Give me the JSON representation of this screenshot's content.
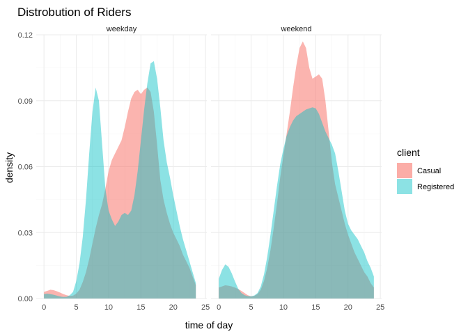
{
  "chart_data": {
    "type": "area",
    "title": "Distrobution of Riders",
    "xlabel": "time of day",
    "ylabel": "density",
    "xlim": [
      -1.2,
      25.2
    ],
    "ylim": [
      0,
      0.12
    ],
    "x_ticks": [
      "0",
      "5",
      "10",
      "15",
      "20",
      "25"
    ],
    "y_ticks": [
      "0.00",
      "0.03",
      "0.06",
      "0.09",
      "0.12"
    ],
    "legend": {
      "title": "client",
      "position": "right",
      "entries": [
        {
          "name": "Casual",
          "color": "#F8766D"
        },
        {
          "name": "Registered",
          "color": "#00BFC4"
        }
      ]
    },
    "facets": [
      {
        "label": "weekday",
        "series": [
          {
            "name": "Casual",
            "color": "#F8766D",
            "x": [
              0,
              0.5,
              1,
              1.5,
              2,
              2.5,
              3,
              3.5,
              4,
              4.5,
              5,
              5.5,
              6,
              6.5,
              7,
              7.5,
              8,
              8.5,
              9,
              9.5,
              10,
              10.5,
              11,
              11.5,
              12,
              12.5,
              13,
              13.5,
              14,
              14.5,
              15,
              15.5,
              16,
              16.5,
              17,
              17.5,
              18,
              18.5,
              19,
              19.5,
              20,
              20.5,
              21,
              21.5,
              22,
              22.5,
              23,
              23.5
            ],
            "y": [
              0.003,
              0.0035,
              0.004,
              0.0038,
              0.0033,
              0.0027,
              0.002,
              0.0015,
              0.0012,
              0.0013,
              0.0022,
              0.004,
              0.0075,
              0.012,
              0.018,
              0.025,
              0.032,
              0.038,
              0.043,
              0.05,
              0.058,
              0.063,
              0.066,
              0.069,
              0.072,
              0.078,
              0.085,
              0.091,
              0.094,
              0.095,
              0.093,
              0.095,
              0.096,
              0.094,
              0.085,
              0.07,
              0.054,
              0.045,
              0.039,
              0.034,
              0.03,
              0.027,
              0.024,
              0.02,
              0.017,
              0.014,
              0.01,
              0.006
            ]
          },
          {
            "name": "Registered",
            "color": "#00BFC4",
            "x": [
              0,
              0.5,
              1,
              1.5,
              2,
              2.5,
              3,
              3.5,
              4,
              4.5,
              5,
              5.5,
              6,
              6.5,
              7,
              7.5,
              8,
              8.5,
              9,
              9.5,
              10,
              10.5,
              11,
              11.5,
              12,
              12.5,
              13,
              13.5,
              14,
              14.5,
              15,
              15.5,
              16,
              16.5,
              17,
              17.5,
              18,
              18.5,
              19,
              19.5,
              20,
              20.5,
              21,
              21.5,
              22,
              22.5,
              23,
              23.5
            ],
            "y": [
              0.002,
              0.0022,
              0.002,
              0.0017,
              0.0013,
              0.0009,
              0.0007,
              0.0008,
              0.0015,
              0.003,
              0.008,
              0.016,
              0.028,
              0.045,
              0.066,
              0.085,
              0.096,
              0.09,
              0.07,
              0.05,
              0.04,
              0.036,
              0.033,
              0.035,
              0.038,
              0.039,
              0.038,
              0.04,
              0.047,
              0.058,
              0.072,
              0.086,
              0.098,
              0.107,
              0.108,
              0.1,
              0.087,
              0.072,
              0.062,
              0.055,
              0.047,
              0.04,
              0.033,
              0.027,
              0.022,
              0.017,
              0.012,
              0.007
            ]
          }
        ]
      },
      {
        "label": "weekend",
        "series": [
          {
            "name": "Casual",
            "color": "#F8766D",
            "x": [
              0,
              0.5,
              1,
              1.5,
              2,
              2.5,
              3,
              3.5,
              4,
              4.5,
              5,
              5.5,
              6,
              6.5,
              7,
              7.5,
              8,
              8.5,
              9,
              9.5,
              10,
              10.5,
              11,
              11.5,
              12,
              12.5,
              13,
              13.5,
              14,
              14.5,
              15,
              15.5,
              16,
              16.5,
              17,
              17.5,
              18,
              18.5,
              19,
              19.5,
              20,
              20.5,
              21,
              21.5,
              22,
              22.5,
              23,
              23.5,
              24
            ],
            "y": [
              0.005,
              0.0055,
              0.006,
              0.0058,
              0.0055,
              0.005,
              0.0043,
              0.0035,
              0.0025,
              0.0015,
              0.001,
              0.0012,
              0.002,
              0.004,
              0.008,
              0.014,
              0.022,
              0.032,
              0.043,
              0.055,
              0.065,
              0.075,
              0.085,
              0.096,
              0.106,
              0.114,
              0.117,
              0.114,
              0.105,
              0.1,
              0.101,
              0.102,
              0.1,
              0.09,
              0.076,
              0.062,
              0.052,
              0.046,
              0.04,
              0.034,
              0.029,
              0.025,
              0.021,
              0.018,
              0.015,
              0.012,
              0.01,
              0.007,
              0.005
            ]
          },
          {
            "name": "Registered",
            "color": "#00BFC4",
            "x": [
              0,
              0.5,
              1,
              1.5,
              2,
              2.5,
              3,
              3.5,
              4,
              4.5,
              5,
              5.5,
              6,
              6.5,
              7,
              7.5,
              8,
              8.5,
              9,
              9.5,
              10,
              10.5,
              11,
              11.5,
              12,
              12.5,
              13,
              13.5,
              14,
              14.5,
              15,
              15.5,
              16,
              16.5,
              17,
              17.5,
              18,
              18.5,
              19,
              19.5,
              20,
              20.5,
              21,
              21.5,
              22,
              22.5,
              23,
              23.5,
              24
            ],
            "y": [
              0.009,
              0.013,
              0.0155,
              0.0145,
              0.0115,
              0.0078,
              0.0045,
              0.0025,
              0.0015,
              0.0011,
              0.001,
              0.0014,
              0.0025,
              0.0055,
              0.011,
              0.019,
              0.029,
              0.04,
              0.051,
              0.061,
              0.068,
              0.074,
              0.078,
              0.081,
              0.083,
              0.084,
              0.085,
              0.086,
              0.0865,
              0.087,
              0.0865,
              0.084,
              0.08,
              0.076,
              0.073,
              0.07,
              0.066,
              0.058,
              0.049,
              0.04,
              0.034,
              0.031,
              0.029,
              0.027,
              0.024,
              0.021,
              0.017,
              0.014,
              0.01
            ]
          }
        ]
      }
    ]
  }
}
